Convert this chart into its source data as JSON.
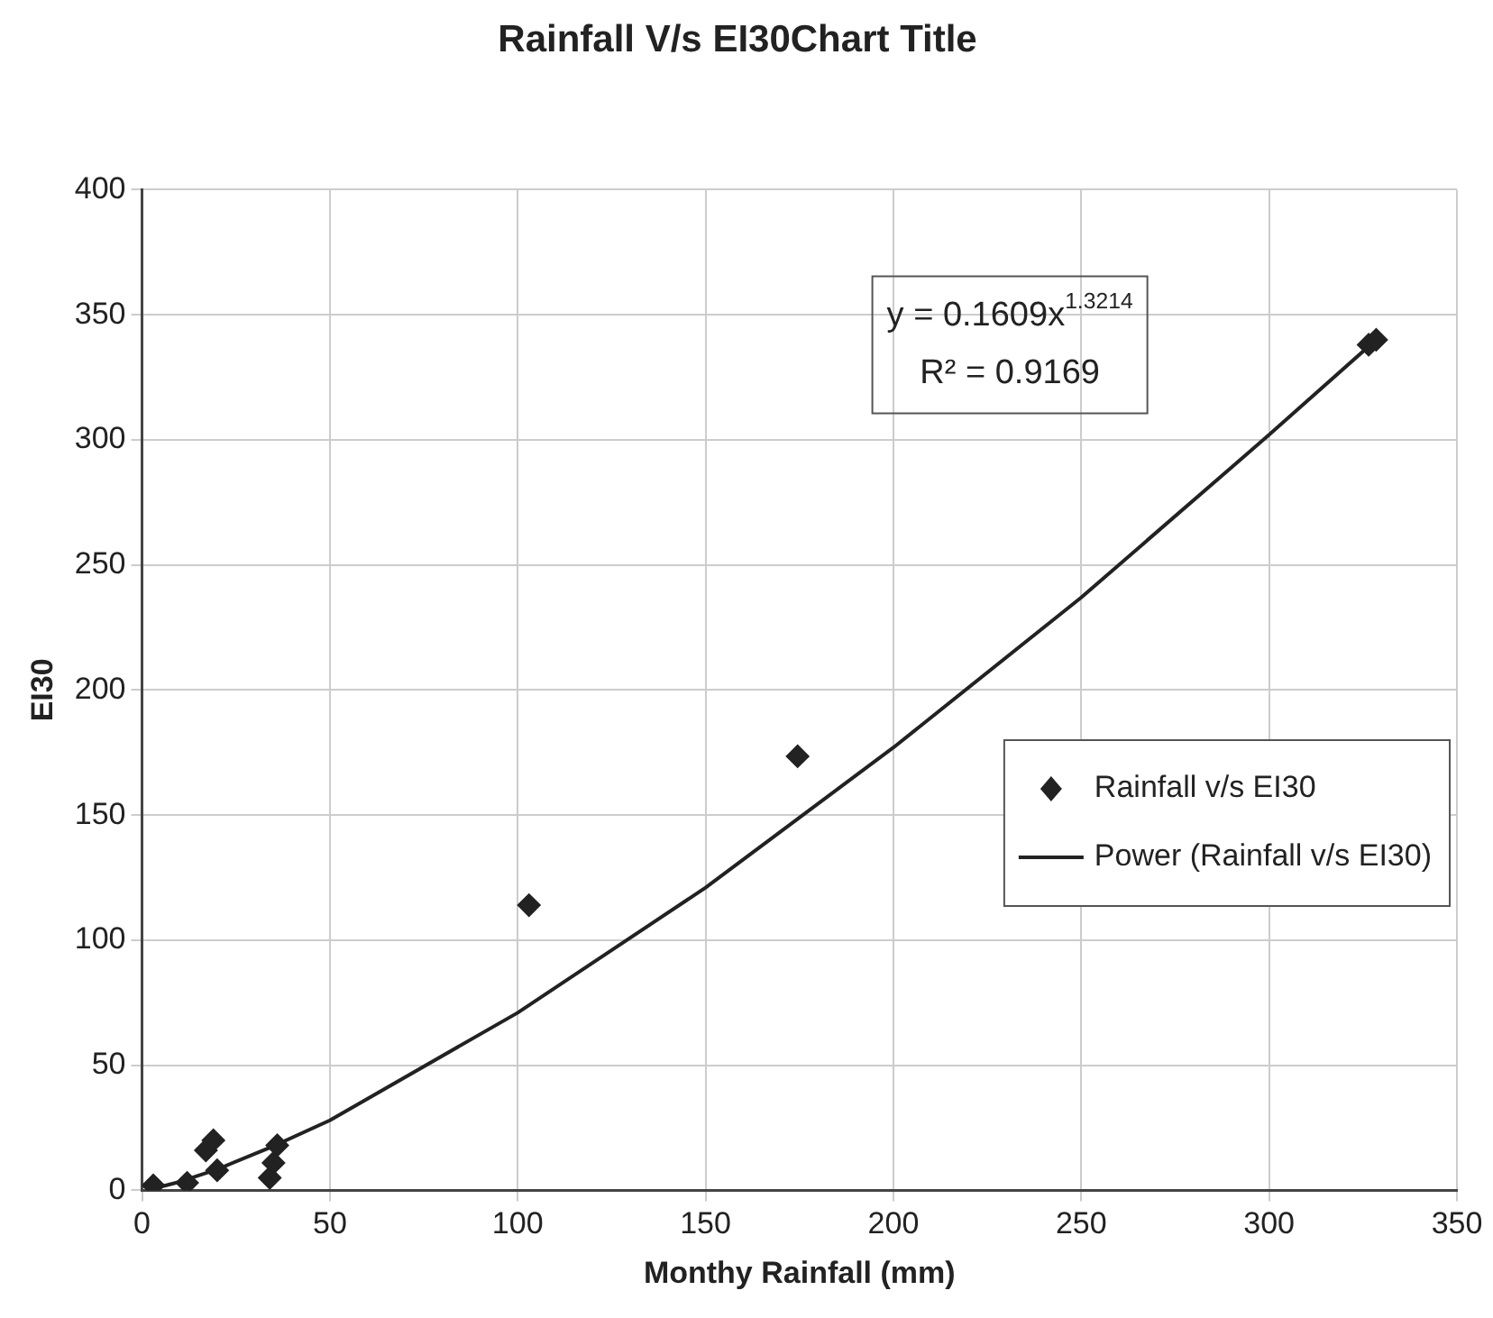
{
  "chart_data": {
    "type": "scatter",
    "title": "Rainfall V/s EI30Chart Title",
    "xlabel": "Monthy Rainfall (mm)",
    "ylabel": "EI30",
    "xlim": [
      0,
      350
    ],
    "xticks": [
      0,
      50,
      100,
      150,
      200,
      250,
      300,
      350
    ],
    "ylim": [
      0,
      400
    ],
    "yticks": [
      0,
      50,
      100,
      150,
      200,
      250,
      300,
      350,
      400
    ],
    "grid": true,
    "legend": "right",
    "marker": "diamond",
    "annotations": [
      "y = 0.1609x$^{1.3214}$",
      "R² = 0.9169"
    ],
    "series": [
      {
        "name": "Rainfall v/s EI30",
        "type": "scatter",
        "color": "#222222",
        "x": [
          3,
          12,
          17,
          19,
          20,
          34,
          35,
          36,
          103,
          174.5,
          326.5,
          328.5
        ],
        "values": [
          2,
          3,
          16,
          20,
          8,
          5,
          11,
          18,
          114,
          173.5,
          338,
          340
        ]
      },
      {
        "name": "Power (Rainfall v/s EI30)",
        "type": "line",
        "color": "#222222",
        "marker": "none",
        "x": [
          3,
          10,
          20,
          35,
          50,
          100,
          150,
          200,
          250,
          300,
          330
        ],
        "values": [
          0.7,
          3.4,
          8.4,
          17.7,
          28,
          71,
          121,
          177,
          237,
          302,
          342
        ]
      }
    ]
  }
}
